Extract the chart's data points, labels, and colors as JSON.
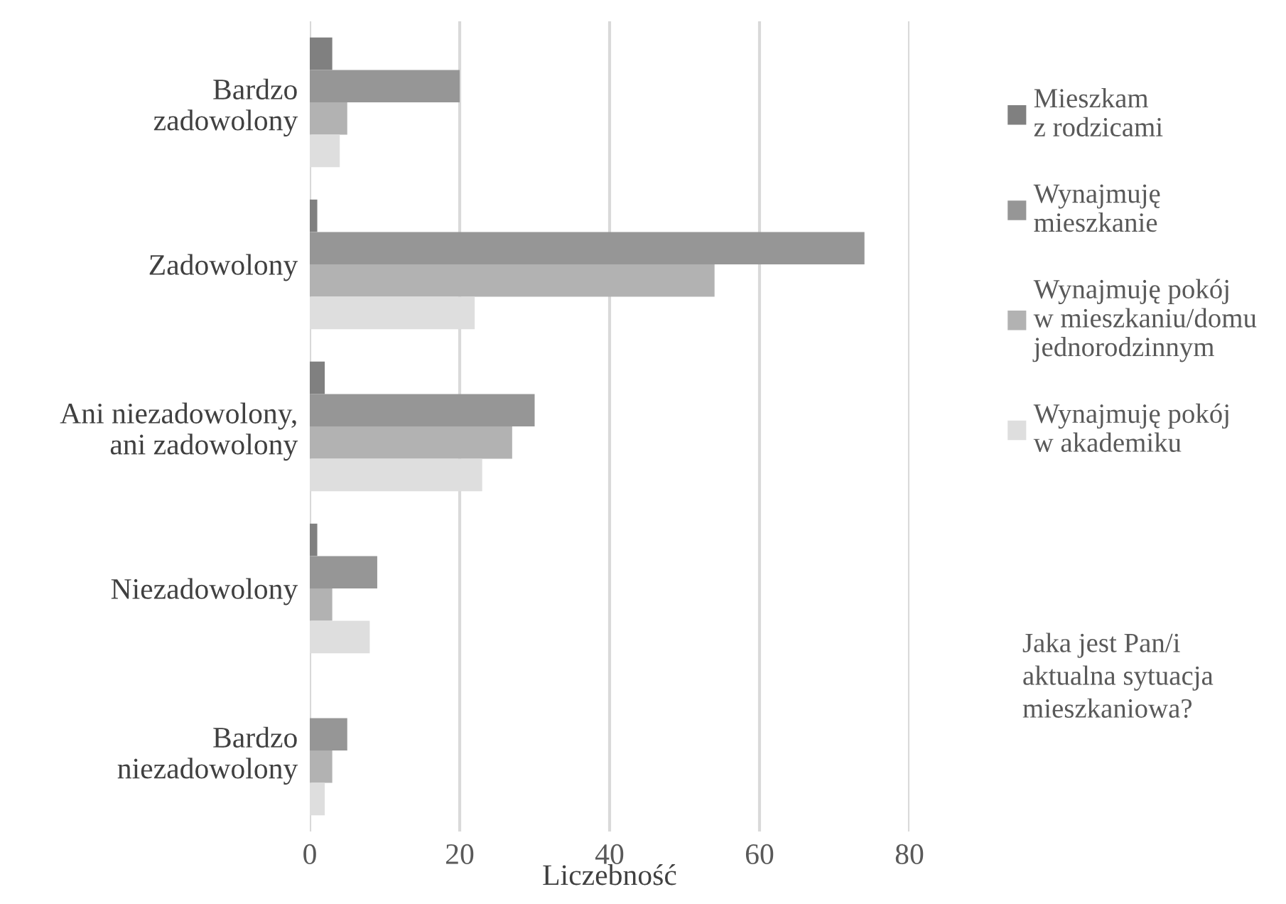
{
  "chart_data": {
    "type": "bar",
    "orientation": "horizontal",
    "xlabel": "Liczebność",
    "legend_title": "Jaka jest Pan/i\naktualna sytuacja\nmieszkaniowa?",
    "categories": [
      "Bardzo\nzadowolony",
      "Zadowolony",
      "Ani niezadowolony,\nani zadowolony",
      "Niezadowolony",
      "Bardzo\nniezadowolony"
    ],
    "series": [
      {
        "name": "Mieszkam\nz rodzicami",
        "color": "#808080",
        "values": [
          3,
          1,
          2,
          1,
          0
        ]
      },
      {
        "name": "Wynajmuję\nmieszkanie",
        "color": "#969696",
        "values": [
          20,
          74,
          30,
          9,
          5
        ]
      },
      {
        "name": "Wynajmuję pokój\nw mieszkaniu/domu\njednorodzinnym",
        "color": "#b2b2b2",
        "values": [
          5,
          54,
          27,
          3,
          3
        ]
      },
      {
        "name": "Wynajmuję pokój\nw akademiku",
        "color": "#dedede",
        "values": [
          4,
          22,
          23,
          8,
          2
        ]
      }
    ],
    "xlim": [
      0,
      80
    ],
    "xticks": [
      0,
      20,
      40,
      60,
      80
    ],
    "grid": "x",
    "legend": "right"
  }
}
